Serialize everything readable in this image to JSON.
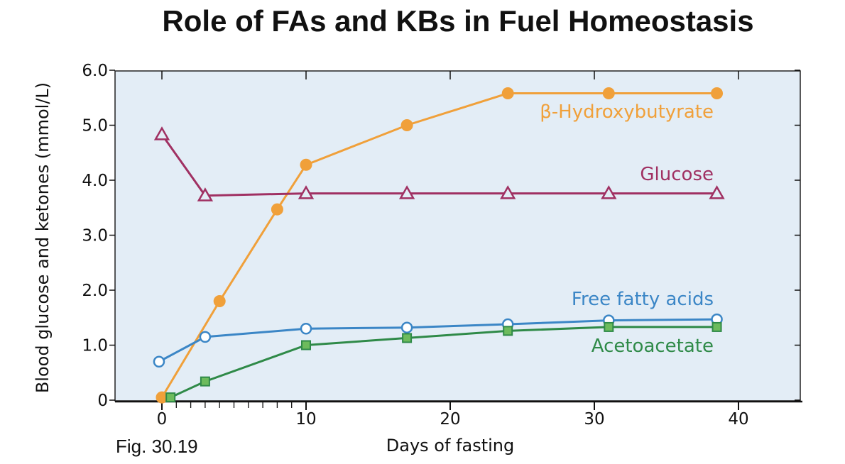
{
  "title": "Role of FAs and KBs in Fuel Homeostasis",
  "figure_label": "Fig. 30.19",
  "colors": {
    "plot_bg": "#e3edf6",
    "hydroxybutyrate": "#f0a03a",
    "glucose": "#a03062",
    "free_fatty_acids": "#3b86c6",
    "acetoacetate": "#2f8a48",
    "acetoacetate_fill": "#6dbb5c"
  },
  "chart_data": {
    "type": "line",
    "title": "Role of FAs and KBs in Fuel Homeostasis",
    "xlabel": "Days of fasting",
    "ylabel": "Blood glucose and ketones (mmol/L)",
    "xlim": [
      -3,
      44
    ],
    "ylim": [
      0,
      6.0
    ],
    "x_ticks": [
      0,
      10,
      20,
      30,
      40
    ],
    "x_tick_labels": [
      "0",
      "10",
      "20",
      "30",
      "40"
    ],
    "y_ticks": [
      0,
      1.0,
      2.0,
      3.0,
      4.0,
      5.0,
      6.0
    ],
    "y_tick_labels": [
      "0",
      "1.0",
      "2.0",
      "3.0",
      "4.0",
      "5.0",
      "6.0"
    ],
    "grid": false,
    "legend": "inline labels next to each series",
    "series": [
      {
        "name": "β-Hydroxybutyrate",
        "marker": "filled-circle",
        "x": [
          0,
          4,
          8,
          10,
          17,
          24,
          31,
          38.5
        ],
        "y": [
          0.05,
          1.8,
          3.47,
          4.28,
          5.0,
          5.58,
          5.58,
          5.58
        ]
      },
      {
        "name": "Glucose",
        "marker": "open-triangle",
        "x": [
          0,
          3,
          10,
          17,
          24,
          31,
          38.5
        ],
        "y": [
          4.83,
          3.72,
          3.76,
          3.76,
          3.76,
          3.76,
          3.76
        ]
      },
      {
        "name": "Free fatty acids",
        "marker": "open-circle",
        "x": [
          -0.2,
          3,
          10,
          17,
          24,
          31,
          38.5
        ],
        "y": [
          0.7,
          1.15,
          1.3,
          1.32,
          1.38,
          1.45,
          1.47
        ]
      },
      {
        "name": "Acetoacetate",
        "marker": "filled-square",
        "x": [
          0.6,
          3,
          10,
          17,
          24,
          31,
          38.5
        ],
        "y": [
          0.05,
          0.34,
          1.0,
          1.13,
          1.26,
          1.33,
          1.33
        ]
      }
    ]
  }
}
